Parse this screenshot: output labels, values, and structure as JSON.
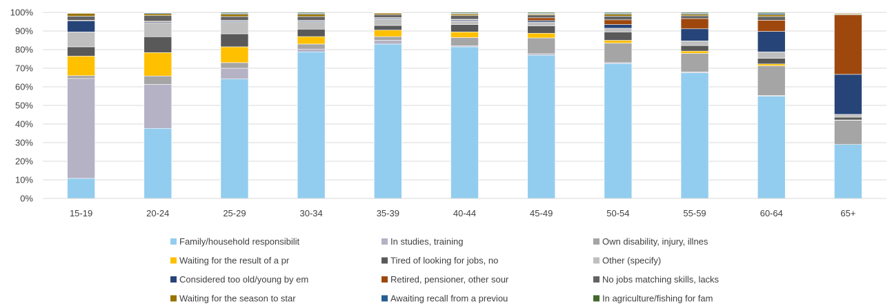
{
  "chart_data": {
    "type": "bar",
    "stacked": true,
    "percent_stacked": true,
    "categories": [
      "15-19",
      "20-24",
      "25-29",
      "30-34",
      "35-39",
      "40-44",
      "45-49",
      "50-54",
      "55-59",
      "60-64",
      "65+"
    ],
    "y_ticks": [
      "0%",
      "10%",
      "20%",
      "30%",
      "40%",
      "50%",
      "60%",
      "70%",
      "80%",
      "90%",
      "100%"
    ],
    "ylim": [
      0,
      100
    ],
    "grid": true,
    "legend_position": "bottom",
    "series": [
      {
        "name": "Family/household responsibilit",
        "color": "#92CDEF",
        "values": [
          10.8,
          37.5,
          64.2,
          78.8,
          83.0,
          81.5,
          77.0,
          72.5,
          67.5,
          55.0,
          29.0
        ]
      },
      {
        "name": "In studies, training",
        "color": "#B4B2C4",
        "values": [
          53.7,
          23.5,
          5.8,
          1.5,
          2.0,
          0.5,
          0.8,
          0.5,
          0.5,
          0.3,
          0.0
        ]
      },
      {
        "name": "Own disability, injury, illnes",
        "color": "#A5A5A5",
        "values": [
          1.5,
          4.5,
          3.0,
          2.7,
          2.0,
          4.5,
          8.5,
          10.5,
          10.0,
          16.0,
          13.0
        ]
      },
      {
        "name": "Waiting for the result of a pr",
        "color": "#FFC000",
        "values": [
          10.5,
          12.5,
          8.5,
          4.0,
          3.5,
          3.0,
          2.5,
          1.5,
          1.2,
          1.0,
          0.2
        ]
      },
      {
        "name": "Tired of looking for jobs, no",
        "color": "#595959",
        "values": [
          5.0,
          8.5,
          7.0,
          4.0,
          2.5,
          4.0,
          4.0,
          4.5,
          3.0,
          3.0,
          1.5
        ]
      },
      {
        "name": "Other (specify)",
        "color": "#BFBFBF",
        "values": [
          8.0,
          7.5,
          6.5,
          4.0,
          3.5,
          2.0,
          2.0,
          2.0,
          2.5,
          3.5,
          1.5
        ]
      },
      {
        "name": "Considered too old/young by em",
        "color": "#264478",
        "values": [
          6.0,
          0.5,
          0.5,
          0.5,
          0.5,
          0.5,
          0.8,
          2.0,
          6.5,
          11.0,
          21.5
        ]
      },
      {
        "name": "Retired, pensioner, other sour",
        "color": "#9E480E",
        "values": [
          0.3,
          0.3,
          0.3,
          0.3,
          0.3,
          0.3,
          1.5,
          2.5,
          5.5,
          6.0,
          32.0
        ]
      },
      {
        "name": "No jobs matching skills, lacks",
        "color": "#636363",
        "values": [
          2.2,
          3.0,
          2.0,
          2.0,
          1.5,
          2.0,
          1.5,
          2.0,
          1.5,
          2.0,
          0.3
        ]
      },
      {
        "name": "Waiting for the season to star",
        "color": "#997300",
        "values": [
          1.5,
          1.0,
          1.2,
          1.2,
          0.8,
          0.8,
          0.5,
          1.0,
          0.8,
          1.0,
          0.5
        ]
      },
      {
        "name": "Awaiting recall from a previou",
        "color": "#255E91",
        "values": [
          0.3,
          0.5,
          0.5,
          0.5,
          0.2,
          0.4,
          0.4,
          0.5,
          0.5,
          0.7,
          0.3
        ]
      },
      {
        "name": "In agriculture/fishing for fam",
        "color": "#43682B",
        "values": [
          0.2,
          0.2,
          0.5,
          0.5,
          0.2,
          0.5,
          0.5,
          0.5,
          0.5,
          0.5,
          0.2
        ]
      }
    ]
  }
}
